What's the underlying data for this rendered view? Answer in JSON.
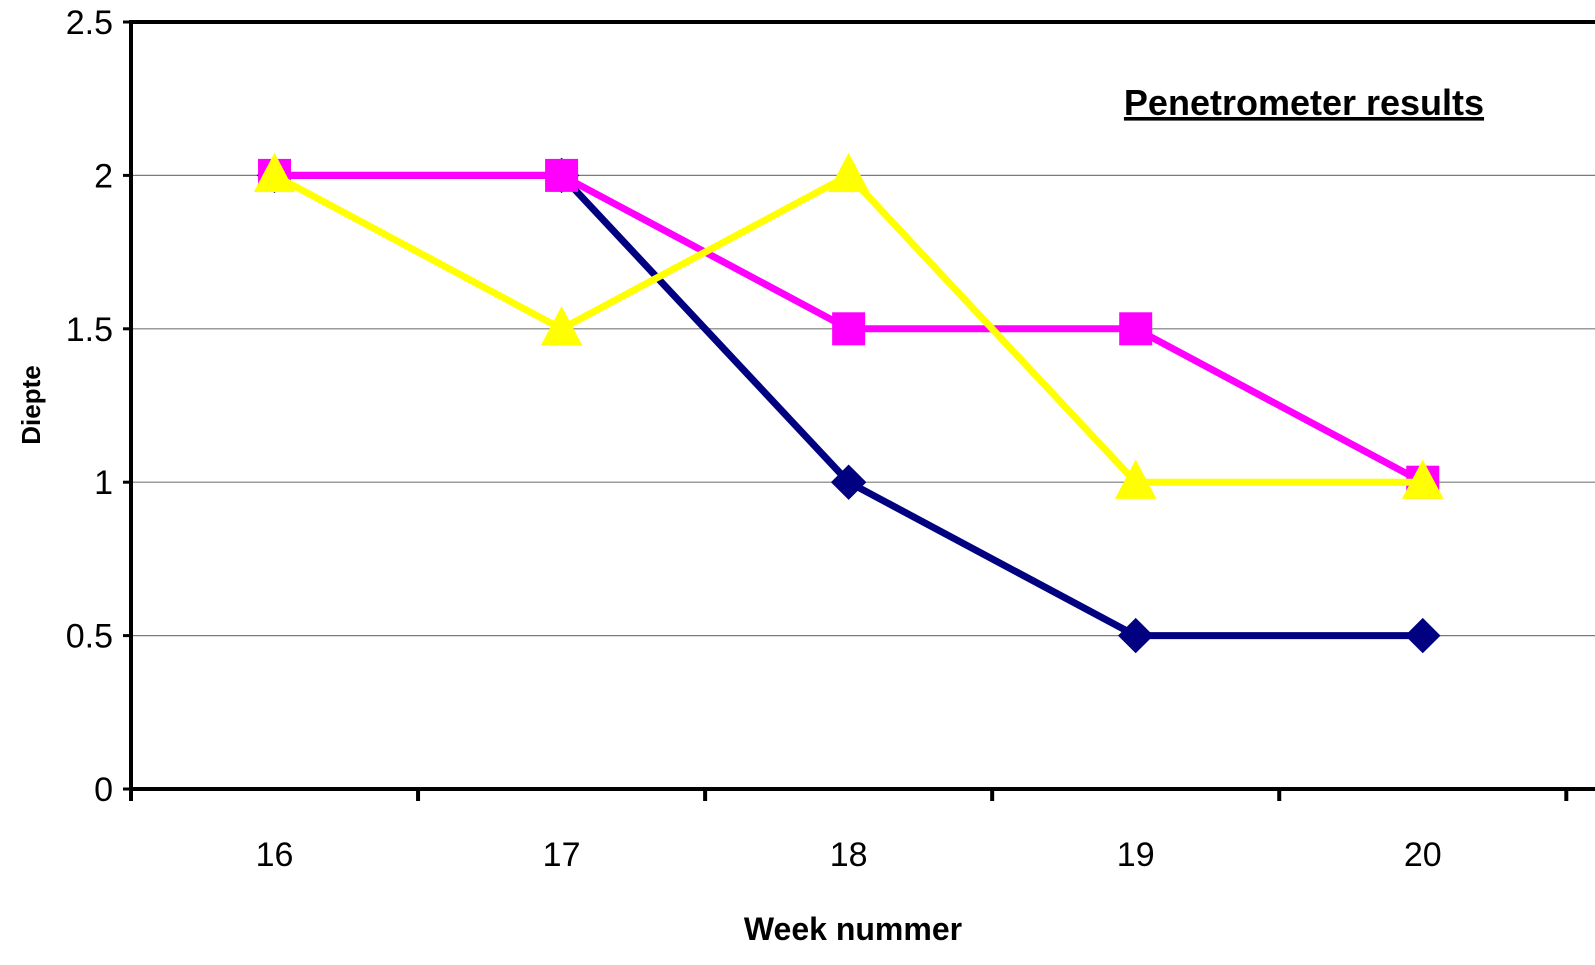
{
  "chart_data": {
    "type": "line",
    "title": "Penetrometer results",
    "xlabel": "Week nummer",
    "ylabel": "Diepte",
    "categories": [
      "16",
      "17",
      "18",
      "19",
      "20"
    ],
    "ylim": [
      0,
      2.5
    ],
    "yticks": [
      "0",
      "0.5",
      "1",
      "1.5",
      "2",
      "2.5"
    ],
    "grid": true,
    "series": [
      {
        "values": [
          2,
          2,
          1,
          0.5,
          0.5
        ],
        "color": "#000080",
        "marker": "diamond"
      },
      {
        "values": [
          2,
          2,
          1.5,
          1.5,
          1
        ],
        "color": "#FF00FF",
        "marker": "square"
      },
      {
        "values": [
          2,
          1.5,
          2,
          1,
          1
        ],
        "color": "#FFFF00",
        "marker": "triangle"
      }
    ]
  }
}
